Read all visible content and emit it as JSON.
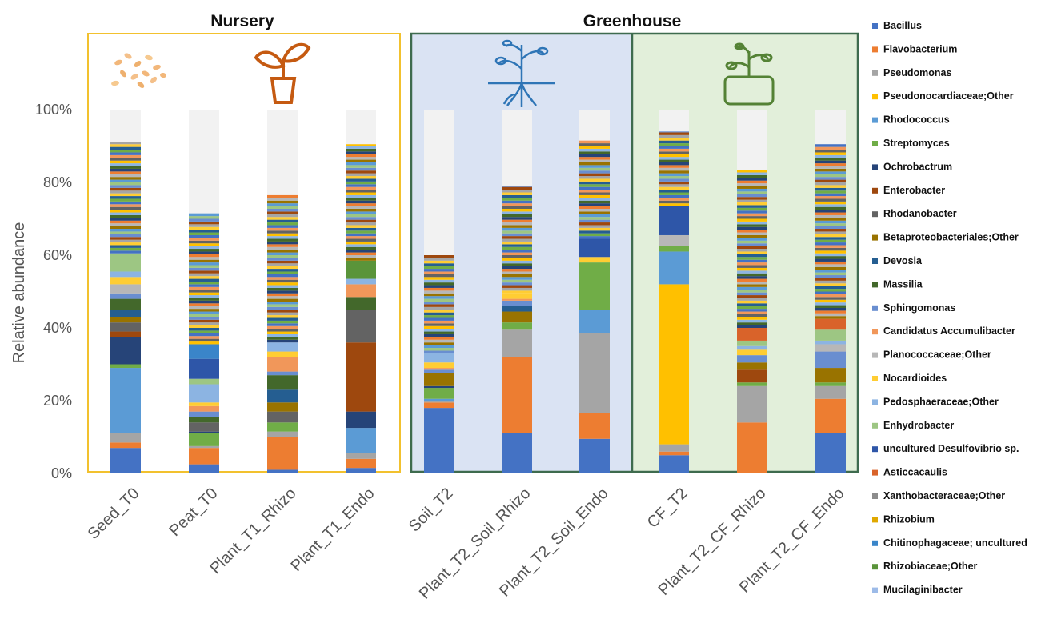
{
  "chart_data": {
    "type": "bar",
    "stacked": true,
    "ylabel": "Relative abundance",
    "yticks": [
      "0%",
      "20%",
      "40%",
      "60%",
      "80%",
      "100%"
    ],
    "ylim": [
      0,
      100
    ],
    "groups": [
      {
        "name": "Nursery",
        "categories": [
          "Seed_T0",
          "Peat_T0",
          "Plant_T1_Rhizo",
          "Plant_T1_Endo"
        ]
      },
      {
        "name": "Greenhouse",
        "categories": [
          "Soil_T2",
          "Plant_T2_Soil_Rhizo",
          "Plant_T2_Soil_Endo",
          "CF_T2",
          "Plant_T2_CF_Rhizo",
          "Plant_T2_CF_Endo"
        ]
      }
    ],
    "categories": [
      "Seed_T0",
      "Peat_T0",
      "Plant_T1_Rhizo",
      "Plant_T1_Endo",
      "Soil_T2",
      "Plant_T2_Soil_Rhizo",
      "Plant_T2_Soil_Endo",
      "CF_T2",
      "Plant_T2_CF_Rhizo",
      "Plant_T2_CF_Endo"
    ],
    "legend_position": "right",
    "series": [
      {
        "name": "Bacillus",
        "color": "#4472c4",
        "values": [
          7,
          2.5,
          1,
          1.5,
          18,
          11,
          9.5,
          5,
          0,
          11
        ]
      },
      {
        "name": "Flavobacterium",
        "color": "#ed7d31",
        "values": [
          1.5,
          4.5,
          9,
          2.5,
          1.5,
          21,
          7,
          1,
          14,
          9.5
        ]
      },
      {
        "name": "Pseudomonas",
        "color": "#a5a5a5",
        "values": [
          2.5,
          0.5,
          1.5,
          1.5,
          0.5,
          7.5,
          22,
          2,
          10,
          3.5
        ]
      },
      {
        "name": "Pseudonocardiaceae;Other",
        "color": "#ffc000",
        "values": [
          0,
          0,
          0,
          0,
          0,
          0,
          0,
          44,
          0,
          0
        ]
      },
      {
        "name": "Rhodococcus",
        "color": "#5b9bd5",
        "values": [
          18,
          0,
          0,
          7,
          0.5,
          0,
          6.5,
          9,
          0,
          0
        ]
      },
      {
        "name": "Streptomyces",
        "color": "#70ad47",
        "values": [
          1,
          3.5,
          2.5,
          0,
          3,
          2,
          13,
          1.5,
          1,
          1
        ]
      },
      {
        "name": "Ochrobactrum",
        "color": "#264478",
        "values": [
          7.5,
          0.5,
          0,
          4.5,
          0.5,
          0,
          0,
          0,
          0,
          0
        ]
      },
      {
        "name": "Enterobacter",
        "color": "#9e480e",
        "values": [
          1.5,
          0,
          0,
          19,
          0,
          0,
          0,
          0,
          3.5,
          0
        ]
      },
      {
        "name": "Rhodanobacter",
        "color": "#636363",
        "values": [
          2.5,
          2.5,
          3,
          9,
          0,
          0,
          0,
          0,
          0,
          0
        ]
      },
      {
        "name": "Betaproteobacteriales;Other",
        "color": "#997300",
        "values": [
          1.5,
          0,
          2.5,
          0,
          3.5,
          3,
          0,
          0,
          2,
          4
        ]
      },
      {
        "name": "Devosia",
        "color": "#255e91",
        "values": [
          2,
          0,
          3.5,
          0,
          0,
          1.5,
          0,
          0,
          0,
          0
        ]
      },
      {
        "name": "Massilia",
        "color": "#43682b",
        "values": [
          3,
          1.5,
          4,
          3.5,
          0,
          0,
          0,
          0,
          0,
          0
        ]
      },
      {
        "name": "Sphingomonas",
        "color": "#698ed0",
        "values": [
          1.5,
          1.5,
          1,
          0,
          1,
          1.5,
          0,
          0,
          2,
          4.5
        ]
      },
      {
        "name": "Candidatus Accumulibacter",
        "color": "#f1975a",
        "values": [
          0,
          1.5,
          4,
          3.5,
          0.5,
          0.5,
          0,
          0,
          0,
          0
        ]
      },
      {
        "name": "Planococcaceae;Other",
        "color": "#b7b7b7",
        "values": [
          2.5,
          0,
          0,
          0,
          0,
          0,
          0,
          3,
          0,
          2
        ]
      },
      {
        "name": "Nocardioides",
        "color": "#ffcd33",
        "values": [
          2,
          1,
          1.5,
          0,
          1.5,
          1.5,
          1.5,
          0,
          1.5,
          0
        ]
      },
      {
        "name": "Pedosphaeraceae;Other",
        "color": "#8cb4e2",
        "values": [
          1.5,
          5,
          2.5,
          1.5,
          2.5,
          0,
          0,
          0,
          1,
          1
        ]
      },
      {
        "name": "Enhydrobacter",
        "color": "#9dc683",
        "values": [
          5,
          1.5,
          0,
          0,
          0,
          0,
          0,
          0,
          1.5,
          3
        ]
      },
      {
        "name": "uncultured Desulfovibrio sp.",
        "color": "#2e56a8",
        "values": [
          0,
          5.5,
          0,
          0,
          0,
          0,
          5,
          8,
          0,
          0
        ]
      },
      {
        "name": "Asticcacaulis",
        "color": "#d9632a",
        "values": [
          0,
          0,
          0,
          0,
          0,
          0,
          0,
          0,
          3.5,
          3
        ]
      },
      {
        "name": "Xanthobacteraceae;Other",
        "color": "#8c8c8c",
        "values": [
          0,
          0,
          0,
          0,
          0,
          0,
          0,
          0,
          0,
          0
        ]
      },
      {
        "name": "Rhizobium",
        "color": "#e0a800",
        "values": [
          0,
          0,
          0,
          0,
          0,
          0,
          0,
          0,
          0,
          0
        ]
      },
      {
        "name": "Chitinophagaceae; uncultured",
        "color": "#3a85c9",
        "values": [
          0,
          4,
          0,
          0,
          0,
          0,
          0,
          0,
          0,
          0
        ]
      },
      {
        "name": "Rhizobiaceae;Other",
        "color": "#5a943a",
        "values": [
          0,
          0,
          0,
          5,
          0,
          0,
          0,
          0,
          0,
          0
        ]
      },
      {
        "name": "Mucilaginibacter",
        "color": "#9dbbe8",
        "values": [
          0,
          0,
          0,
          0,
          0,
          0,
          0,
          0,
          0,
          0
        ]
      }
    ],
    "others_color": "#f2f2f2",
    "detail_top": [
      91,
      71.5,
      76.5,
      90.5,
      60,
      79,
      91.5,
      94,
      83.5,
      90.5
    ]
  }
}
